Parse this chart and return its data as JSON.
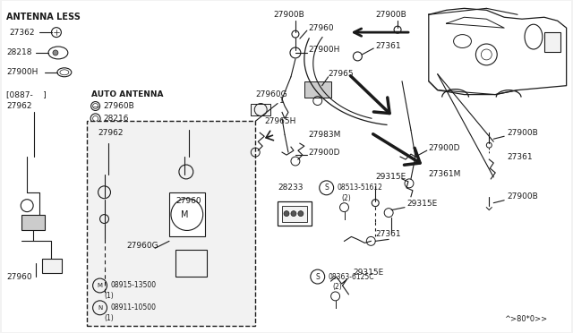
{
  "bg_color": "#f0f0f0",
  "line_color": "#1a1a1a",
  "fig_width": 6.4,
  "fig_height": 3.72,
  "dpi": 100,
  "diagram_id": "^>80*0>>",
  "parts": {
    "antenna_less": "ANTENNA LESS",
    "auto_antenna": "AUTO ANTENNA",
    "bracket": "[0887-    ]"
  }
}
